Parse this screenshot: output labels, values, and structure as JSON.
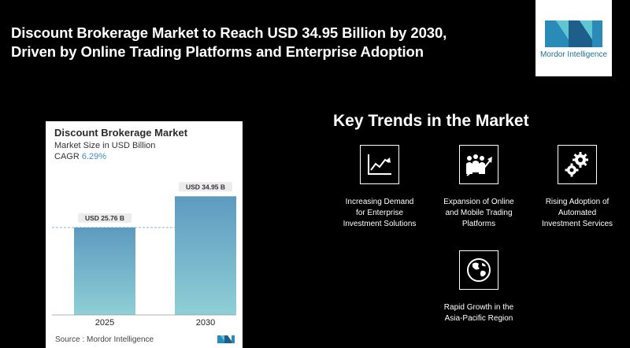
{
  "headline": {
    "line1": "Discount Brokerage Market to Reach USD 34.95 Billion by 2030,",
    "line2": "Driven by Online Trading Platforms and Enterprise Adoption"
  },
  "logo": {
    "text": "Mordor Intelligence",
    "colors": [
      "#2a8ab8",
      "#5fc6d2",
      "#1d5e8a"
    ]
  },
  "chart": {
    "title": "Discount Brokerage Market",
    "subtitle": "Market Size in USD Billion",
    "cagr_label": "CAGR",
    "cagr_value": "6.29%",
    "source": "Source :  Mordor Intelligence"
  },
  "chart_data": {
    "type": "bar",
    "title": "Discount Brokerage Market",
    "ylabel": "Market Size in USD Billion",
    "categories": [
      "2025",
      "2030"
    ],
    "values": [
      25.76,
      34.95
    ],
    "data_labels": [
      "USD 25.76 B",
      "USD 34.95 B"
    ],
    "ylim": [
      0,
      38.5
    ],
    "grid": false,
    "reference_line": 25.76,
    "bar_color_top": "#5d9ac0",
    "bar_color_bottom": "#8fcfd6"
  },
  "trends": {
    "title": "Key Trends in the Market",
    "items": [
      {
        "icon": "chart-line-icon",
        "label_lines": [
          "Increasing Demand",
          "for Enterprise",
          "Investment Solutions"
        ]
      },
      {
        "icon": "people-growth-icon",
        "label_lines": [
          "Expansion of Online",
          "and Mobile Trading",
          "Platforms"
        ]
      },
      {
        "icon": "gears-icon",
        "label_lines": [
          "Rising Adoption of",
          "Automated",
          "Investment Services"
        ]
      },
      {
        "icon": "globe-icon",
        "label_lines": [
          "Rapid Growth in the",
          "Asia-Pacific Region"
        ]
      }
    ]
  }
}
